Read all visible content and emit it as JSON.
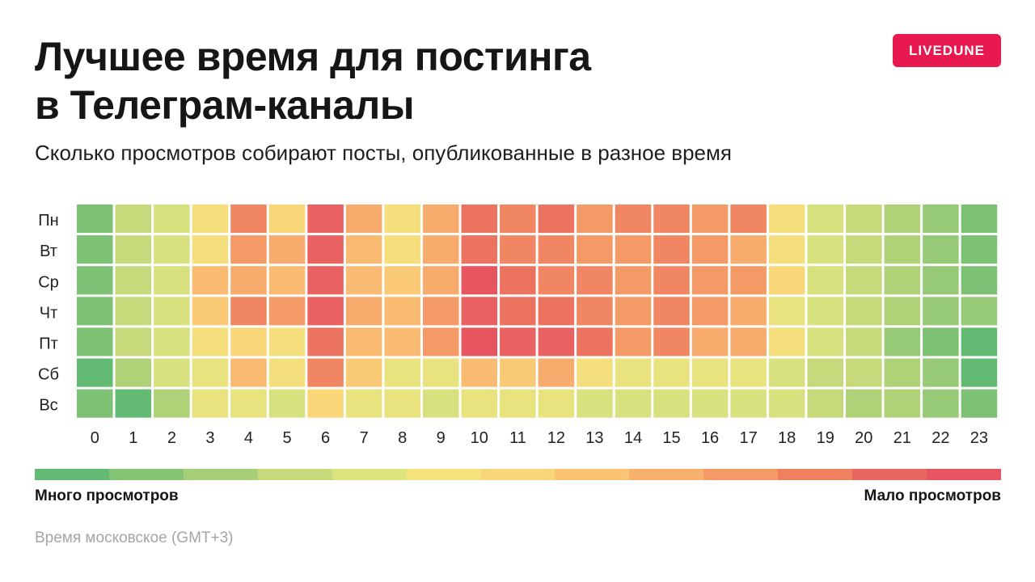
{
  "title_lines": [
    "Лучшее время для постинга",
    "в Телеграм-каналы"
  ],
  "brand": "LIVEDUNE",
  "subtitle": "Сколько просмотров собирают посты, опубликованные в разное время",
  "legend": {
    "low_label": "Много просмотров",
    "high_label": "Мало просмотров",
    "scale_colors": [
      "#63bb73",
      "#85c474",
      "#a7cf77",
      "#c6da7b",
      "#dce47f",
      "#f4e27d",
      "#f9d778",
      "#fac474",
      "#f8b06e",
      "#f49a66",
      "#ef8060",
      "#ea6661",
      "#e75560"
    ]
  },
  "footnote": "Время московское (GMT+3)",
  "chart_data": {
    "type": "heatmap",
    "title": "Лучшее время для постинга в Телеграм-каналы",
    "subtitle": "Сколько просмотров собирают посты, опубликованные в разное время",
    "x": [
      "0",
      "1",
      "2",
      "3",
      "4",
      "5",
      "6",
      "7",
      "8",
      "9",
      "10",
      "11",
      "12",
      "13",
      "14",
      "15",
      "16",
      "17",
      "18",
      "19",
      "20",
      "21",
      "22",
      "23"
    ],
    "y": [
      "Пн",
      "Вт",
      "Ср",
      "Чт",
      "Пт",
      "Сб",
      "Вс"
    ],
    "color_scale": {
      "min_label": "Много просмотров",
      "max_label": "Мало просмотров",
      "palette": [
        "#63bb73",
        "#85c474",
        "#a7cf77",
        "#c6da7b",
        "#dce47f",
        "#f4e27d",
        "#f9d778",
        "#fac474",
        "#f8b06e",
        "#f49a66",
        "#ef8060",
        "#ea6661",
        "#e75560"
      ],
      "value_range": [
        1,
        9
      ]
    },
    "values": [
      [
        1.5,
        3,
        3.5,
        4.5,
        7.5,
        5,
        8.5,
        6.5,
        4.5,
        6.5,
        8,
        7.5,
        8,
        7,
        7.5,
        7.5,
        7,
        7.5,
        4.5,
        3.5,
        3,
        2.5,
        2,
        1.5
      ],
      [
        1.5,
        3,
        3.5,
        4.5,
        7,
        6.5,
        8.5,
        6,
        4.5,
        6.5,
        8,
        7.5,
        7.5,
        7,
        7,
        7.5,
        7,
        6.5,
        4.5,
        3.5,
        3,
        2.5,
        2,
        1.5
      ],
      [
        1.5,
        3,
        3.5,
        6,
        6.5,
        6,
        8.5,
        6,
        5.5,
        6.5,
        9,
        8,
        7.5,
        7.5,
        7,
        7.5,
        7,
        7,
        5,
        3.5,
        3,
        2.5,
        2,
        1.5
      ],
      [
        1.5,
        3,
        3.5,
        5.5,
        7.5,
        7,
        8.5,
        6.5,
        6,
        7,
        8.5,
        8,
        8,
        7.5,
        7,
        7.5,
        7,
        6.5,
        4,
        3.5,
        3,
        2.5,
        2,
        2
      ],
      [
        1.5,
        3,
        3.5,
        4.5,
        5,
        4.5,
        8,
        6,
        6,
        7,
        9,
        8.5,
        8.5,
        8,
        7,
        7.5,
        6.5,
        6.5,
        4.5,
        3.5,
        3,
        2,
        1.5,
        1
      ],
      [
        1,
        2.5,
        3.5,
        4,
        6,
        4.5,
        7.5,
        5.5,
        4,
        4,
        6,
        5.5,
        6.5,
        4.5,
        4,
        4,
        4,
        4,
        3.5,
        3,
        3,
        2.5,
        2,
        1
      ],
      [
        1.5,
        1,
        2.5,
        4,
        4,
        3.5,
        5,
        4,
        4,
        3.5,
        4,
        4,
        4,
        3.5,
        3.5,
        3.5,
        3.5,
        3.5,
        3.5,
        3,
        2.5,
        2.5,
        2,
        1.5
      ]
    ]
  }
}
